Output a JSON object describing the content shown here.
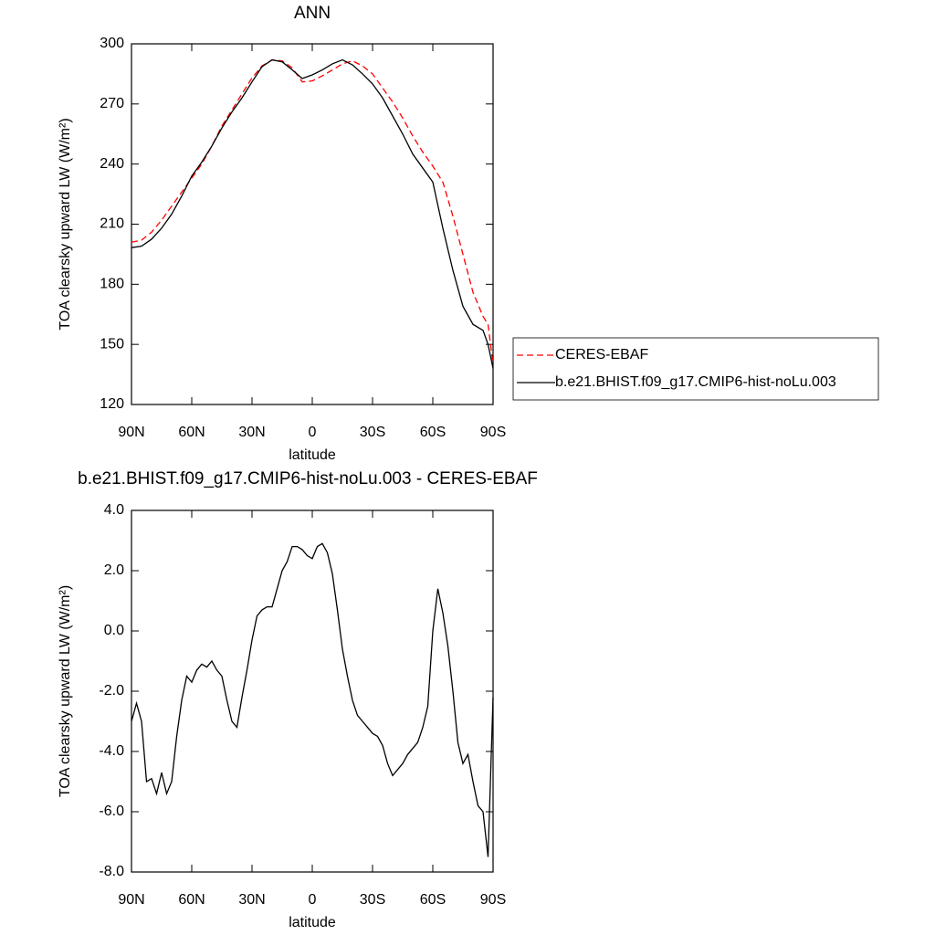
{
  "chart_data": [
    {
      "type": "line",
      "title": "ANN",
      "xlabel": "latitude",
      "ylabel": "TOA clearsky upward LW (W/m²)",
      "x": [
        90,
        85,
        80,
        75,
        70,
        65,
        60,
        55,
        50,
        45,
        40,
        35,
        30,
        25,
        20,
        15,
        10,
        5,
        0,
        -5,
        -10,
        -15,
        -20,
        -25,
        -30,
        -35,
        -40,
        -45,
        -50,
        -55,
        -60,
        -65,
        -70,
        -75,
        -80,
        -85,
        -87.5,
        -90
      ],
      "series": [
        {
          "name": "CERES-EBAF",
          "color": "#ff0000",
          "dash": true,
          "values": [
            201,
            202,
            206,
            212,
            219,
            226,
            233,
            240,
            249,
            259,
            267,
            275,
            283,
            289,
            292,
            291.5,
            288,
            281,
            281.5,
            284,
            287,
            290,
            291.5,
            289,
            285,
            278,
            271,
            263,
            254,
            246,
            239,
            231,
            214,
            195,
            176,
            164,
            160,
            140
          ]
        },
        {
          "name": "b.e21.BHIST.f09_g17.CMIP6-hist-noLu.003",
          "color": "#000000",
          "dash": false,
          "values": [
            198.3,
            199,
            202.5,
            208,
            215,
            224,
            234,
            241,
            249,
            258,
            266,
            273,
            281,
            288.6,
            292,
            291,
            287,
            282.7,
            284.5,
            287,
            290,
            292,
            289.5,
            285,
            280,
            273,
            264,
            255,
            245,
            238,
            231,
            208,
            187,
            169,
            160,
            157,
            150,
            138
          ]
        }
      ],
      "xlim": [
        90,
        -90
      ],
      "xticks": [
        {
          "value": 90,
          "label": "90N"
        },
        {
          "value": 60,
          "label": "60N"
        },
        {
          "value": 30,
          "label": "30N"
        },
        0,
        {
          "value": -30,
          "label": "30S"
        },
        {
          "value": -60,
          "label": "60S"
        },
        {
          "value": -90,
          "label": "90S"
        }
      ],
      "ylim": [
        120,
        300
      ],
      "yticks": [
        120,
        150,
        180,
        210,
        240,
        270,
        300
      ],
      "legend": "right"
    },
    {
      "type": "line",
      "title": "b.e21.BHIST.f09_g17.CMIP6-hist-noLu.003 - CERES-EBAF",
      "xlabel": "latitude",
      "ylabel": "TOA clearsky upward LW (W/m²)",
      "x": [
        90,
        87.5,
        85,
        82.5,
        80,
        77.5,
        75,
        72.5,
        70,
        67.5,
        65,
        62.5,
        60,
        57.5,
        55,
        52.5,
        50,
        47.5,
        45,
        42.5,
        40,
        37.5,
        35,
        32.5,
        30,
        27.5,
        25,
        22.5,
        20,
        17.5,
        15,
        12.5,
        10,
        7.5,
        5,
        2.5,
        0,
        -2.5,
        -5,
        -7.5,
        -10,
        -12.5,
        -15,
        -17.5,
        -20,
        -22.5,
        -25,
        -27.5,
        -30,
        -32.5,
        -35,
        -37.5,
        -40,
        -42.5,
        -45,
        -47.5,
        -50,
        -52.5,
        -55,
        -57.5,
        -60,
        -62.5,
        -65,
        -67.5,
        -70,
        -72.5,
        -75,
        -77.5,
        -80,
        -82.5,
        -85,
        -87.5,
        -90
      ],
      "series": [
        {
          "color": "#000000",
          "dash": false,
          "values": [
            -3.0,
            -2.4,
            -3.0,
            -5.0,
            -4.9,
            -5.4,
            -4.7,
            -5.4,
            -5.0,
            -3.5,
            -2.3,
            -1.5,
            -1.7,
            -1.3,
            -1.1,
            -1.2,
            -1.0,
            -1.3,
            -1.5,
            -2.3,
            -3.0,
            -3.2,
            -2.2,
            -1.3,
            -0.3,
            0.5,
            0.7,
            0.8,
            0.8,
            1.4,
            2.0,
            2.3,
            2.8,
            2.8,
            2.7,
            2.5,
            2.4,
            2.8,
            2.9,
            2.6,
            1.9,
            0.7,
            -0.6,
            -1.5,
            -2.3,
            -2.8,
            -3.0,
            -3.2,
            -3.4,
            -3.5,
            -3.8,
            -4.4,
            -4.8,
            -4.6,
            -4.4,
            -4.1,
            -3.9,
            -3.7,
            -3.2,
            -2.5,
            0.0,
            1.4,
            0.6,
            -0.5,
            -2.0,
            -3.7,
            -4.4,
            -4.1,
            -5.0,
            -5.8,
            -6.0,
            -7.5,
            -2.2
          ]
        }
      ],
      "xlim": [
        90,
        -90
      ],
      "xticks": [
        {
          "value": 90,
          "label": "90N"
        },
        {
          "value": 60,
          "label": "60N"
        },
        {
          "value": 30,
          "label": "30N"
        },
        0,
        {
          "value": -30,
          "label": "30S"
        },
        {
          "value": -60,
          "label": "60S"
        },
        {
          "value": -90,
          "label": "90S"
        }
      ],
      "ylim": [
        -8,
        4
      ],
      "yticks": [
        {
          "value": -8,
          "label": "-8.0"
        },
        {
          "value": -6,
          "label": "-6.0"
        },
        {
          "value": -4,
          "label": "-4.0"
        },
        {
          "value": -2,
          "label": "-2.0"
        },
        {
          "value": 0,
          "label": "0.0"
        },
        {
          "value": 2,
          "label": "2.0"
        },
        {
          "value": 4,
          "label": "4.0"
        }
      ]
    }
  ]
}
